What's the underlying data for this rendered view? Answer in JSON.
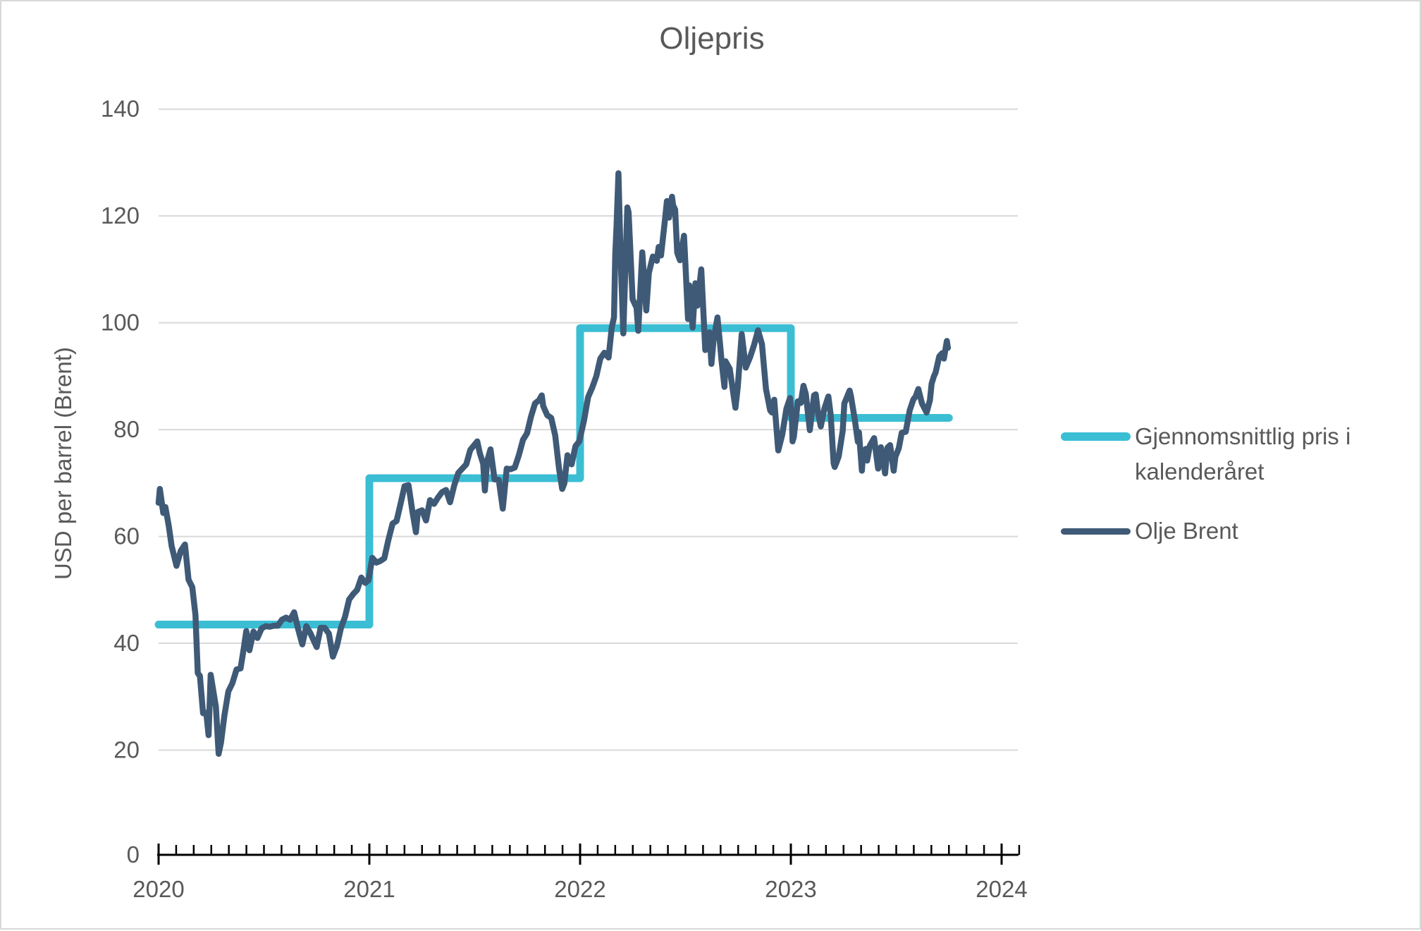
{
  "title": "Oljepris",
  "y_axis": {
    "title": "USD per barrel (Brent)"
  },
  "legend": [
    {
      "label": "Gjennomsnittlig pris i kalenderåret",
      "color": "#3bbed4"
    },
    {
      "label": "Olje Brent",
      "color": "#3f5a77"
    }
  ],
  "palette": {
    "text": "#595959",
    "grid": "#d9d9d9",
    "axis": "#000000",
    "background": "#ffffff"
  },
  "chart_data": {
    "type": "line",
    "title": "Oljepris",
    "xlabel": "",
    "ylabel": "USD per barrel (Brent)",
    "ylim": [
      0,
      145
    ],
    "xlim": [
      2020,
      2024.083
    ],
    "yticks": [
      0,
      20,
      40,
      60,
      80,
      100,
      120,
      140
    ],
    "xticks": [
      2020,
      2021,
      2022,
      2023,
      2024
    ],
    "minor_x_step_years": 0.08333,
    "grid": true,
    "legend_position": "right",
    "series": [
      {
        "name": "Gjennomsnittlig pris i kalenderåret",
        "color": "#3bbed4",
        "style": "step",
        "steps": [
          {
            "year": 2020,
            "value": 43.5,
            "x_start": 2020.0,
            "x_end": 2021.0
          },
          {
            "year": 2021,
            "value": 70.9,
            "x_start": 2021.0,
            "x_end": 2022.0
          },
          {
            "year": 2022,
            "value": 99.0,
            "x_start": 2022.0,
            "x_end": 2023.0
          },
          {
            "year": 2023,
            "value": 82.2,
            "x_start": 2023.0,
            "x_end": 2023.75
          }
        ]
      },
      {
        "name": "Olje Brent",
        "color": "#3f5a77",
        "style": "line",
        "points": [
          [
            2020.0,
            66.3
          ],
          [
            2020.006,
            68.9
          ],
          [
            2020.022,
            64.4
          ],
          [
            2020.032,
            65.5
          ],
          [
            2020.048,
            62.0
          ],
          [
            2020.062,
            58.2
          ],
          [
            2020.085,
            54.5
          ],
          [
            2020.105,
            57.3
          ],
          [
            2020.125,
            58.5
          ],
          [
            2020.142,
            51.9
          ],
          [
            2020.16,
            50.5
          ],
          [
            2020.175,
            45.3
          ],
          [
            2020.186,
            34.4
          ],
          [
            2020.196,
            33.9
          ],
          [
            2020.211,
            26.9
          ],
          [
            2020.226,
            27.0
          ],
          [
            2020.237,
            22.8
          ],
          [
            2020.247,
            34.1
          ],
          [
            2020.258,
            31.5
          ],
          [
            2020.272,
            28.1
          ],
          [
            2020.285,
            19.3
          ],
          [
            2020.296,
            21.4
          ],
          [
            2020.312,
            26.4
          ],
          [
            2020.331,
            31.0
          ],
          [
            2020.35,
            32.5
          ],
          [
            2020.37,
            35.1
          ],
          [
            2020.389,
            35.3
          ],
          [
            2020.404,
            39.0
          ],
          [
            2020.416,
            42.3
          ],
          [
            2020.431,
            38.7
          ],
          [
            2020.45,
            42.2
          ],
          [
            2020.469,
            41.0
          ],
          [
            2020.489,
            42.8
          ],
          [
            2020.508,
            43.2
          ],
          [
            2020.527,
            43.1
          ],
          [
            2020.547,
            43.3
          ],
          [
            2020.566,
            43.3
          ],
          [
            2020.585,
            44.4
          ],
          [
            2020.605,
            44.8
          ],
          [
            2020.624,
            44.4
          ],
          [
            2020.643,
            45.8
          ],
          [
            2020.662,
            42.7
          ],
          [
            2020.682,
            39.8
          ],
          [
            2020.701,
            43.2
          ],
          [
            2020.72,
            41.9
          ],
          [
            2020.75,
            39.3
          ],
          [
            2020.769,
            42.9
          ],
          [
            2020.788,
            42.9
          ],
          [
            2020.808,
            41.8
          ],
          [
            2020.827,
            37.5
          ],
          [
            2020.846,
            39.5
          ],
          [
            2020.865,
            42.8
          ],
          [
            2020.885,
            45.0
          ],
          [
            2020.904,
            48.2
          ],
          [
            2020.923,
            49.2
          ],
          [
            2020.942,
            50.0
          ],
          [
            2020.962,
            52.3
          ],
          [
            2020.981,
            51.3
          ],
          [
            2020.996,
            51.8
          ],
          [
            2021.014,
            56.0
          ],
          [
            2021.033,
            55.1
          ],
          [
            2021.052,
            55.4
          ],
          [
            2021.071,
            55.9
          ],
          [
            2021.09,
            59.3
          ],
          [
            2021.11,
            62.4
          ],
          [
            2021.129,
            62.9
          ],
          [
            2021.148,
            66.1
          ],
          [
            2021.167,
            69.4
          ],
          [
            2021.186,
            69.6
          ],
          [
            2021.205,
            64.5
          ],
          [
            2021.221,
            60.8
          ],
          [
            2021.23,
            64.6
          ],
          [
            2021.25,
            64.9
          ],
          [
            2021.269,
            63.0
          ],
          [
            2021.288,
            66.8
          ],
          [
            2021.307,
            66.1
          ],
          [
            2021.326,
            67.3
          ],
          [
            2021.345,
            68.3
          ],
          [
            2021.364,
            68.7
          ],
          [
            2021.383,
            66.4
          ],
          [
            2021.403,
            69.6
          ],
          [
            2021.422,
            71.9
          ],
          [
            2021.441,
            72.7
          ],
          [
            2021.46,
            73.5
          ],
          [
            2021.479,
            76.2
          ],
          [
            2021.512,
            77.8
          ],
          [
            2021.524,
            75.6
          ],
          [
            2021.54,
            73.6
          ],
          [
            2021.548,
            68.6
          ],
          [
            2021.559,
            74.1
          ],
          [
            2021.575,
            76.3
          ],
          [
            2021.594,
            70.7
          ],
          [
            2021.614,
            70.6
          ],
          [
            2021.633,
            65.2
          ],
          [
            2021.652,
            72.7
          ],
          [
            2021.671,
            72.6
          ],
          [
            2021.69,
            72.9
          ],
          [
            2021.71,
            75.3
          ],
          [
            2021.729,
            78.1
          ],
          [
            2021.748,
            79.3
          ],
          [
            2021.767,
            82.4
          ],
          [
            2021.786,
            84.9
          ],
          [
            2021.805,
            85.5
          ],
          [
            2021.818,
            86.4
          ],
          [
            2021.825,
            84.4
          ],
          [
            2021.844,
            82.7
          ],
          [
            2021.863,
            82.2
          ],
          [
            2021.882,
            78.9
          ],
          [
            2021.9,
            72.7
          ],
          [
            2021.915,
            68.9
          ],
          [
            2021.925,
            69.9
          ],
          [
            2021.94,
            75.2
          ],
          [
            2021.96,
            73.5
          ],
          [
            2021.978,
            76.9
          ],
          [
            2021.996,
            77.8
          ],
          [
            2022.019,
            81.8
          ],
          [
            2022.038,
            86.1
          ],
          [
            2022.058,
            87.9
          ],
          [
            2022.077,
            90.0
          ],
          [
            2022.096,
            93.3
          ],
          [
            2022.115,
            94.4
          ],
          [
            2022.135,
            93.5
          ],
          [
            2022.15,
            99.1
          ],
          [
            2022.161,
            101.0
          ],
          [
            2022.167,
            112.9
          ],
          [
            2022.173,
            118.1
          ],
          [
            2022.182,
            128.0
          ],
          [
            2022.192,
            112.7
          ],
          [
            2022.205,
            98.0
          ],
          [
            2022.224,
            121.6
          ],
          [
            2022.23,
            120.7
          ],
          [
            2022.249,
            104.4
          ],
          [
            2022.268,
            102.8
          ],
          [
            2022.276,
            98.5
          ],
          [
            2022.295,
            113.2
          ],
          [
            2022.314,
            102.3
          ],
          [
            2022.326,
            109.3
          ],
          [
            2022.345,
            112.4
          ],
          [
            2022.364,
            111.6
          ],
          [
            2022.373,
            114.2
          ],
          [
            2022.384,
            112.6
          ],
          [
            2022.403,
            119.4
          ],
          [
            2022.412,
            122.8
          ],
          [
            2022.422,
            119.7
          ],
          [
            2022.436,
            123.6
          ],
          [
            2022.441,
            122.0
          ],
          [
            2022.451,
            121.2
          ],
          [
            2022.461,
            113.1
          ],
          [
            2022.474,
            111.7
          ],
          [
            2022.493,
            116.3
          ],
          [
            2022.499,
            111.6
          ],
          [
            2022.512,
            100.7
          ],
          [
            2022.518,
            107.0
          ],
          [
            2022.534,
            99.1
          ],
          [
            2022.547,
            107.4
          ],
          [
            2022.556,
            103.2
          ],
          [
            2022.575,
            110.0
          ],
          [
            2022.594,
            94.9
          ],
          [
            2022.614,
            98.2
          ],
          [
            2022.623,
            92.3
          ],
          [
            2022.633,
            96.7
          ],
          [
            2022.652,
            101.0
          ],
          [
            2022.663,
            96.5
          ],
          [
            2022.671,
            93.0
          ],
          [
            2022.685,
            88.0
          ],
          [
            2022.69,
            92.8
          ],
          [
            2022.71,
            91.4
          ],
          [
            2022.729,
            86.2
          ],
          [
            2022.737,
            84.1
          ],
          [
            2022.748,
            88.0
          ],
          [
            2022.767,
            97.9
          ],
          [
            2022.786,
            91.6
          ],
          [
            2022.806,
            93.5
          ],
          [
            2022.825,
            95.8
          ],
          [
            2022.844,
            98.6
          ],
          [
            2022.863,
            96.0
          ],
          [
            2022.882,
            87.6
          ],
          [
            2022.902,
            83.6
          ],
          [
            2022.91,
            83.2
          ],
          [
            2022.921,
            85.6
          ],
          [
            2022.94,
            76.1
          ],
          [
            2022.959,
            79.0
          ],
          [
            2022.979,
            83.9
          ],
          [
            2022.996,
            85.9
          ],
          [
            2023.005,
            82.1
          ],
          [
            2023.008,
            77.8
          ],
          [
            2023.014,
            78.6
          ],
          [
            2023.033,
            85.3
          ],
          [
            2023.047,
            85.0
          ],
          [
            2023.06,
            88.2
          ],
          [
            2023.071,
            86.7
          ],
          [
            2023.09,
            79.9
          ],
          [
            2023.11,
            86.4
          ],
          [
            2023.118,
            86.6
          ],
          [
            2023.129,
            83.0
          ],
          [
            2023.142,
            80.6
          ],
          [
            2023.159,
            83.9
          ],
          [
            2023.178,
            86.2
          ],
          [
            2023.189,
            82.8
          ],
          [
            2023.203,
            73.7
          ],
          [
            2023.208,
            73.0
          ],
          [
            2023.216,
            73.8
          ],
          [
            2023.227,
            75.0
          ],
          [
            2023.246,
            79.8
          ],
          [
            2023.254,
            84.9
          ],
          [
            2023.279,
            87.3
          ],
          [
            2023.285,
            86.3
          ],
          [
            2023.304,
            81.7
          ],
          [
            2023.318,
            77.7
          ],
          [
            2023.323,
            79.5
          ],
          [
            2023.337,
            72.3
          ],
          [
            2023.342,
            75.3
          ],
          [
            2023.356,
            76.4
          ],
          [
            2023.362,
            74.2
          ],
          [
            2023.375,
            77.0
          ],
          [
            2023.395,
            78.4
          ],
          [
            2023.414,
            72.7
          ],
          [
            2023.427,
            76.7
          ],
          [
            2023.447,
            71.8
          ],
          [
            2023.458,
            76.6
          ],
          [
            2023.471,
            77.1
          ],
          [
            2023.488,
            72.3
          ],
          [
            2023.496,
            74.9
          ],
          [
            2023.512,
            76.5
          ],
          [
            2023.526,
            79.4
          ],
          [
            2023.545,
            79.6
          ],
          [
            2023.564,
            83.6
          ],
          [
            2023.581,
            85.6
          ],
          [
            2023.592,
            86.2
          ],
          [
            2023.605,
            87.6
          ],
          [
            2023.622,
            84.9
          ],
          [
            2023.644,
            83.2
          ],
          [
            2023.66,
            85.5
          ],
          [
            2023.668,
            88.6
          ],
          [
            2023.679,
            90.0
          ],
          [
            2023.687,
            90.7
          ],
          [
            2023.704,
            93.7
          ],
          [
            2023.718,
            94.3
          ],
          [
            2023.726,
            93.3
          ],
          [
            2023.74,
            96.6
          ],
          [
            2023.745,
            95.3
          ]
        ]
      }
    ]
  }
}
